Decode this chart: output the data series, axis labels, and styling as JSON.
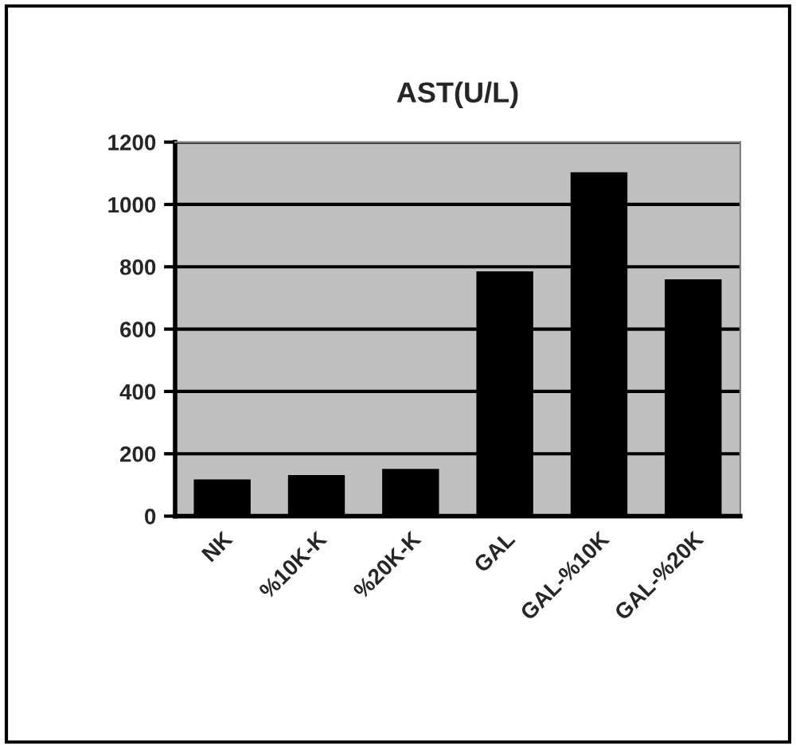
{
  "chart_data": {
    "type": "bar",
    "title": "AST(U/L)",
    "categories": [
      "NK",
      "%10K-K",
      "%20K-K",
      "GAL",
      "GAL-%10K",
      "GAL-%20K"
    ],
    "values": [
      114,
      128,
      148,
      782,
      1100,
      756
    ],
    "color": "#000000",
    "ylim": [
      0,
      1200
    ],
    "yticks": [
      0,
      200,
      400,
      600,
      800,
      1000,
      1200
    ],
    "grid": "y"
  }
}
